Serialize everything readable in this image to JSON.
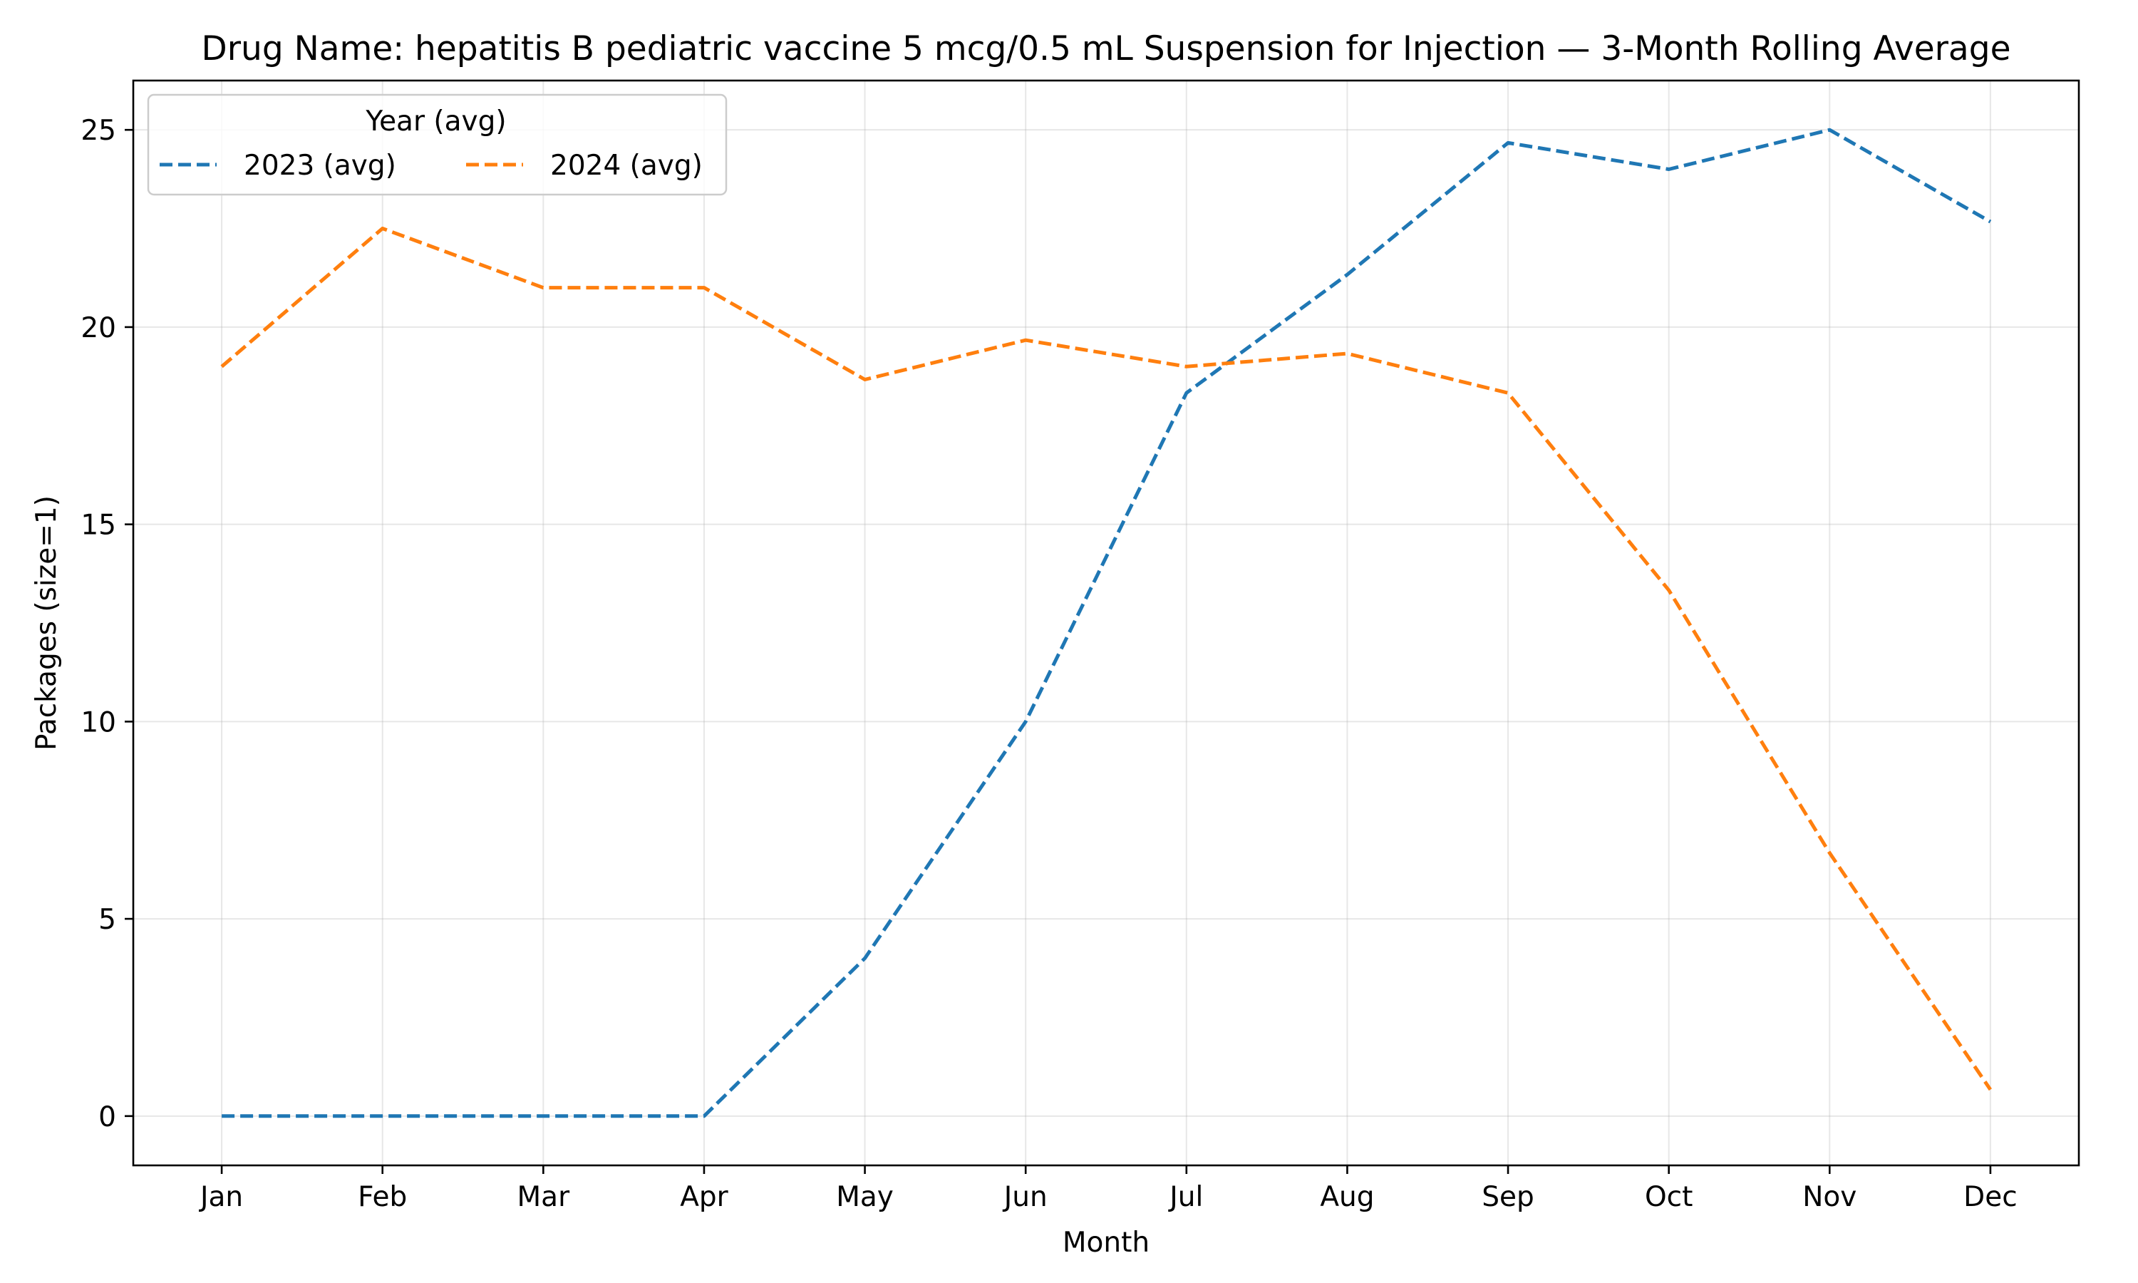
{
  "chart_data": {
    "type": "line",
    "title": "Drug Name: hepatitis B pediatric vaccine 5 mcg/0.5 mL Suspension for Injection — 3-Month Rolling Average",
    "xlabel": "Month",
    "ylabel": "Packages (size=1)",
    "categories": [
      "Jan",
      "Feb",
      "Mar",
      "Apr",
      "May",
      "Jun",
      "Jul",
      "Aug",
      "Sep",
      "Oct",
      "Nov",
      "Dec"
    ],
    "ylim": [
      -1.25,
      26.25
    ],
    "yticks": [
      0,
      5,
      10,
      15,
      20,
      25
    ],
    "grid": true,
    "legend": {
      "title": "Year (avg)",
      "placement": "top-left",
      "columns": 2
    },
    "series": [
      {
        "name": "2023 (avg)",
        "color": "#1f77b4",
        "values": [
          0,
          0,
          0,
          0,
          4,
          10,
          18.33,
          21.33,
          24.67,
          24,
          25,
          22.67
        ]
      },
      {
        "name": "2024 (avg)",
        "color": "#ff7f0e",
        "values": [
          19,
          22.5,
          21,
          21,
          18.67,
          19.67,
          19,
          19.33,
          18.33,
          13.33,
          6.67,
          0.67
        ]
      }
    ]
  }
}
